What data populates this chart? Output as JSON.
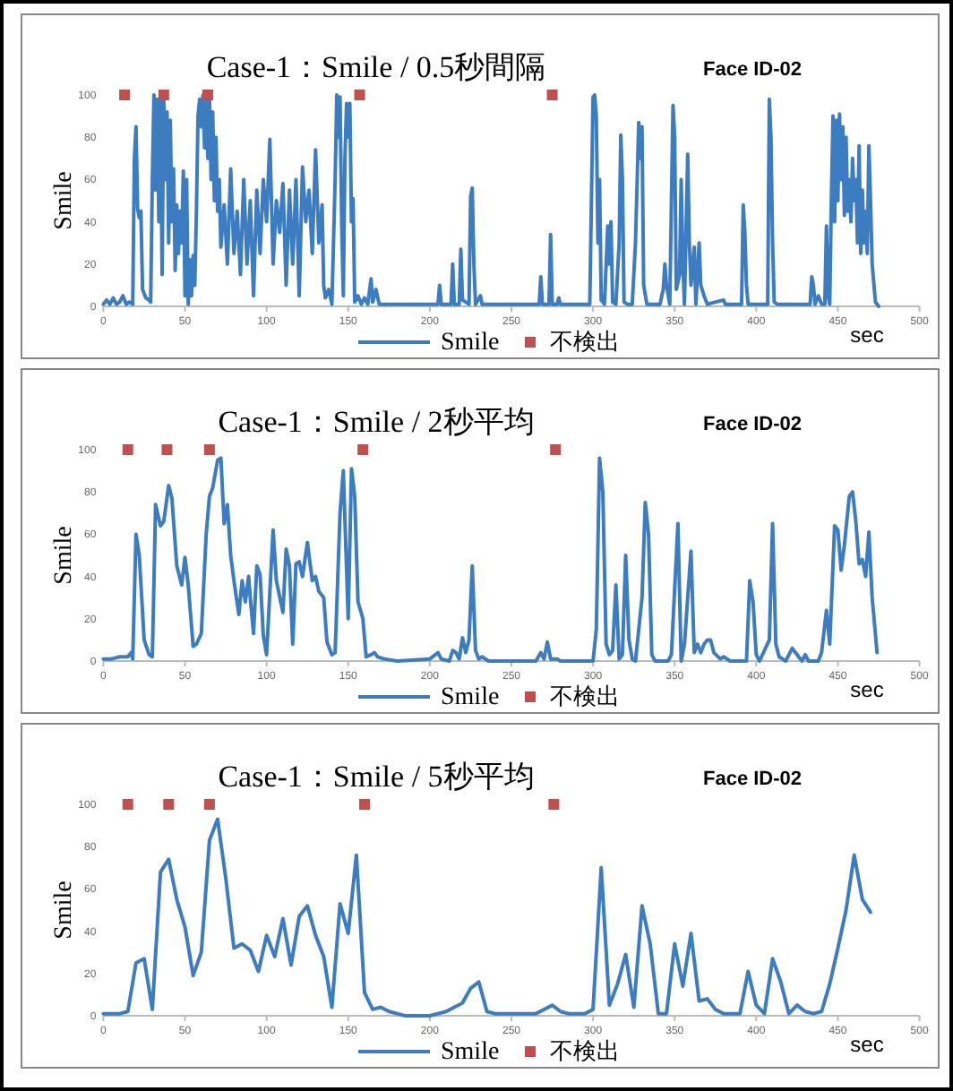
{
  "chart_data": [
    {
      "type": "line",
      "title": "Case-1：Smile / 0.5秒間隔",
      "subtitle": "Face ID-02",
      "xlabel": "sec",
      "ylabel": "Smile",
      "xlim": [
        0,
        500
      ],
      "xticks": [
        0,
        50,
        100,
        150,
        200,
        250,
        300,
        350,
        400,
        450,
        500
      ],
      "ylim": [
        0,
        100
      ],
      "yticks": [
        0,
        20,
        40,
        60,
        80,
        100
      ],
      "legend": "bottom",
      "grid": false,
      "series": [
        {
          "name": "Smile",
          "color": "#3c7cc0",
          "x": [
            0,
            2,
            4,
            6,
            8,
            10,
            12,
            14,
            16,
            18,
            19,
            20,
            21,
            22,
            23,
            24,
            26,
            28,
            29,
            30,
            31,
            32,
            33,
            34,
            35,
            36,
            37,
            38,
            39,
            40,
            41,
            42,
            43,
            44,
            45,
            46,
            47,
            48,
            49,
            50,
            51,
            52,
            53,
            54,
            55,
            56,
            57,
            58,
            59,
            60,
            61,
            62,
            63,
            64,
            65,
            66,
            67,
            68,
            69,
            70,
            71,
            72,
            74,
            76,
            78,
            80,
            82,
            84,
            86,
            88,
            90,
            92,
            94,
            96,
            98,
            100,
            102,
            104,
            106,
            108,
            110,
            112,
            114,
            116,
            118,
            120,
            122,
            124,
            126,
            128,
            130,
            132,
            134,
            135,
            136,
            138,
            140,
            142,
            143,
            144,
            145,
            146,
            147,
            148,
            149,
            150,
            151,
            152,
            153,
            154,
            156,
            158,
            160,
            162,
            164,
            165,
            167,
            169,
            172,
            205,
            206,
            207,
            213,
            214,
            215,
            218,
            219,
            220,
            224,
            225,
            226,
            227,
            228,
            231,
            232,
            267,
            268,
            269,
            273,
            274,
            275,
            278,
            279,
            280,
            298,
            300,
            301,
            302,
            303,
            304,
            305,
            307,
            309,
            310,
            311,
            312,
            314,
            316,
            317,
            318,
            319,
            321,
            324,
            326,
            328,
            329,
            330,
            331,
            333,
            341,
            343,
            344,
            345,
            347,
            349,
            350,
            351,
            353,
            354,
            355,
            356,
            358,
            359,
            360,
            362,
            363,
            365,
            366,
            368,
            370,
            380,
            381,
            391,
            392,
            393,
            394,
            395,
            407,
            408,
            409,
            410,
            411,
            413,
            433,
            434,
            435,
            436,
            438,
            440,
            442,
            443,
            444,
            445,
            446,
            447,
            448,
            449,
            450,
            451,
            452,
            453,
            454,
            455,
            456,
            457,
            458,
            459,
            460,
            461,
            462,
            463,
            464,
            465,
            466,
            467,
            468,
            469,
            470,
            471,
            473,
            475
          ],
          "values": [
            1,
            3,
            1,
            4,
            1,
            2,
            5,
            1,
            2,
            1,
            70,
            85,
            46,
            42,
            45,
            8,
            4,
            3,
            2,
            60,
            100,
            55,
            98,
            40,
            100,
            15,
            98,
            60,
            92,
            30,
            88,
            40,
            65,
            17,
            48,
            25,
            45,
            30,
            64,
            5,
            60,
            1,
            22,
            5,
            24,
            10,
            45,
            90,
            98,
            85,
            100,
            75,
            100,
            70,
            98,
            60,
            92,
            50,
            80,
            45,
            60,
            28,
            48,
            20,
            65,
            25,
            45,
            15,
            60,
            20,
            50,
            5,
            55,
            25,
            60,
            40,
            79,
            20,
            50,
            35,
            58,
            10,
            55,
            20,
            60,
            5,
            66,
            40,
            55,
            25,
            74,
            30,
            48,
            10,
            4,
            8,
            1,
            60,
            100,
            80,
            99,
            40,
            5,
            70,
            96,
            80,
            96,
            40,
            51,
            2,
            5,
            1,
            4,
            1,
            13,
            2,
            8,
            1,
            1,
            1,
            10,
            1,
            1,
            20,
            1,
            1,
            27,
            3,
            1,
            52,
            56,
            20,
            1,
            5,
            1,
            1,
            14,
            1,
            1,
            34,
            1,
            1,
            4,
            1,
            1,
            99,
            100,
            90,
            30,
            60,
            3,
            1,
            38,
            20,
            40,
            2,
            1,
            30,
            81,
            60,
            2,
            1,
            1,
            30,
            87,
            70,
            85,
            10,
            1,
            1,
            8,
            20,
            10,
            1,
            95,
            80,
            8,
            15,
            60,
            20,
            1,
            72,
            30,
            10,
            28,
            1,
            30,
            10,
            5,
            1,
            3,
            1,
            1,
            48,
            35,
            10,
            1,
            1,
            98,
            80,
            30,
            2,
            1,
            1,
            14,
            10,
            1,
            5,
            1,
            1,
            38,
            5,
            1,
            50,
            90,
            40,
            88,
            50,
            91,
            60,
            85,
            43,
            80,
            45,
            60,
            40,
            70,
            50,
            60,
            30,
            76,
            25,
            55,
            30,
            45,
            25,
            76,
            50,
            20,
            2,
            0
          ]
        },
        {
          "name": "不検出",
          "type": "scatter",
          "marker": "square",
          "color": "#c0504d",
          "x": [
            13,
            37,
            64,
            157,
            275
          ],
          "values": [
            100,
            100,
            100,
            100,
            100
          ]
        }
      ]
    },
    {
      "type": "line",
      "title": "Case-1：Smile / 2秒平均",
      "subtitle": "Face ID-02",
      "xlabel": "sec",
      "ylabel": "Smile",
      "xlim": [
        0,
        500
      ],
      "xticks": [
        0,
        50,
        100,
        150,
        200,
        250,
        300,
        350,
        400,
        450,
        500
      ],
      "ylim": [
        0,
        100
      ],
      "yticks": [
        0,
        20,
        40,
        60,
        80,
        100
      ],
      "legend": "bottom",
      "grid": false,
      "series": [
        {
          "name": "Smile",
          "color": "#3c7cc0",
          "x": [
            0,
            5,
            10,
            15,
            17,
            18,
            20,
            22,
            25,
            28,
            30,
            32,
            35,
            37,
            40,
            42,
            45,
            48,
            50,
            52,
            55,
            57,
            60,
            63,
            65,
            67,
            70,
            72,
            74,
            76,
            78,
            80,
            83,
            85,
            87,
            89,
            90,
            92,
            94,
            96,
            98,
            100,
            104,
            106,
            110,
            112,
            114,
            116,
            118,
            120,
            122,
            125,
            128,
            130,
            132,
            135,
            137,
            140,
            142,
            145,
            147,
            150,
            152,
            154,
            156,
            159,
            161,
            164,
            166,
            168,
            172,
            180,
            200,
            205,
            207,
            212,
            214,
            216,
            218,
            220,
            222,
            224,
            226,
            228,
            230,
            232,
            236,
            265,
            268,
            270,
            272,
            274,
            278,
            280,
            300,
            302,
            304,
            306,
            308,
            310,
            312,
            314,
            316,
            318,
            320,
            322,
            324,
            326,
            330,
            332,
            334,
            336,
            338,
            346,
            348,
            352,
            354,
            356,
            360,
            362,
            364,
            366,
            368,
            370,
            372,
            374,
            378,
            380,
            384,
            394,
            396,
            398,
            400,
            402,
            408,
            410,
            412,
            414,
            418,
            422,
            424,
            428,
            430,
            432,
            438,
            440,
            443,
            445,
            448,
            450,
            452,
            454,
            457,
            459,
            461,
            463,
            465,
            467,
            469,
            471,
            474
          ],
          "values": [
            1,
            1,
            2,
            2,
            4,
            1,
            60,
            50,
            10,
            3,
            2,
            74,
            64,
            66,
            83,
            77,
            45,
            36,
            49,
            36,
            7,
            8,
            13,
            60,
            78,
            82,
            95,
            96,
            65,
            74,
            50,
            38,
            22,
            38,
            28,
            40,
            30,
            13,
            45,
            41,
            12,
            3,
            62,
            38,
            23,
            53,
            45,
            8,
            46,
            47,
            40,
            56,
            38,
            40,
            33,
            30,
            9,
            3,
            4,
            70,
            90,
            20,
            91,
            78,
            28,
            20,
            2,
            3,
            4,
            2,
            1,
            0,
            1,
            4,
            1,
            0,
            5,
            4,
            1,
            11,
            4,
            10,
            45,
            5,
            1,
            2,
            0,
            0,
            4,
            1,
            9,
            1,
            1,
            0,
            0,
            15,
            96,
            80,
            8,
            3,
            5,
            36,
            1,
            3,
            50,
            10,
            1,
            0,
            30,
            75,
            60,
            3,
            0,
            0,
            3,
            65,
            0,
            8,
            52,
            4,
            8,
            4,
            8,
            10,
            10,
            4,
            1,
            2,
            0,
            0,
            38,
            28,
            3,
            0,
            10,
            65,
            8,
            2,
            0,
            6,
            4,
            0,
            3,
            0,
            0,
            4,
            24,
            8,
            64,
            62,
            43,
            55,
            78,
            80,
            66,
            46,
            48,
            40,
            61,
            30,
            4
          ]
        },
        {
          "name": "不検出",
          "type": "scatter",
          "marker": "square",
          "color": "#c0504d",
          "x": [
            15,
            39,
            65,
            159,
            277
          ],
          "values": [
            100,
            100,
            100,
            100,
            100
          ]
        }
      ]
    },
    {
      "type": "line",
      "title": "Case-1：Smile / 5秒平均",
      "subtitle": "Face ID-02",
      "xlabel": "sec",
      "ylabel": "Smile",
      "xlim": [
        0,
        500
      ],
      "xticks": [
        0,
        50,
        100,
        150,
        200,
        250,
        300,
        350,
        400,
        450,
        500
      ],
      "ylim": [
        0,
        100
      ],
      "yticks": [
        0,
        20,
        40,
        60,
        80,
        100
      ],
      "legend": "bottom",
      "grid": false,
      "series": [
        {
          "name": "Smile",
          "color": "#3c7cc0",
          "x": [
            0,
            5,
            10,
            15,
            20,
            25,
            30,
            35,
            40,
            45,
            50,
            55,
            60,
            65,
            70,
            75,
            80,
            85,
            90,
            95,
            100,
            105,
            110,
            115,
            120,
            125,
            130,
            135,
            140,
            145,
            150,
            155,
            160,
            165,
            170,
            175,
            180,
            185,
            190,
            195,
            200,
            205,
            210,
            215,
            220,
            225,
            230,
            235,
            240,
            245,
            250,
            255,
            260,
            265,
            270,
            275,
            280,
            285,
            290,
            295,
            300,
            305,
            310,
            315,
            320,
            325,
            330,
            335,
            340,
            345,
            350,
            355,
            360,
            365,
            370,
            375,
            380,
            385,
            390,
            395,
            400,
            405,
            410,
            415,
            420,
            425,
            430,
            435,
            440,
            445,
            450,
            455,
            460,
            465,
            470
          ],
          "values": [
            1,
            1,
            1,
            2,
            25,
            27,
            3,
            68,
            74,
            55,
            42,
            19,
            30,
            83,
            93,
            65,
            32,
            34,
            31,
            21,
            38,
            28,
            46,
            24,
            47,
            52,
            38,
            28,
            4,
            53,
            39,
            76,
            11,
            3,
            4,
            2,
            1,
            0,
            0,
            0,
            0,
            1,
            2,
            4,
            6,
            13,
            16,
            2,
            1,
            1,
            1,
            1,
            1,
            1,
            3,
            5,
            2,
            1,
            1,
            1,
            3,
            70,
            5,
            15,
            29,
            4,
            52,
            34,
            1,
            1,
            34,
            14,
            39,
            7,
            8,
            3,
            1,
            1,
            1,
            21,
            5,
            1,
            27,
            16,
            1,
            5,
            2,
            1,
            2,
            15,
            32,
            50,
            76,
            55,
            49
          ]
        },
        {
          "name": "不検出",
          "type": "scatter",
          "marker": "square",
          "color": "#c0504d",
          "x": [
            15,
            40,
            65,
            160,
            276
          ],
          "values": [
            100,
            100,
            100,
            100,
            100
          ]
        }
      ]
    }
  ]
}
